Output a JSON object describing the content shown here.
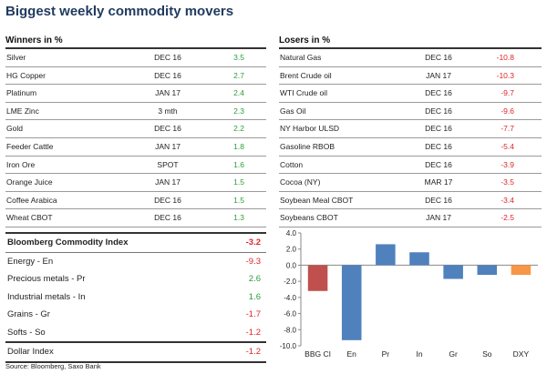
{
  "title": "Biggest weekly commodity movers",
  "winners": {
    "header": "Winners in %",
    "rows": [
      {
        "name": "Silver",
        "contract": "DEC 16",
        "change": "3.5"
      },
      {
        "name": "HG Copper",
        "contract": "DEC 16",
        "change": "2.7"
      },
      {
        "name": "Platinum",
        "contract": "JAN 17",
        "change": "2.4"
      },
      {
        "name": "LME Zinc",
        "contract": "3 mth",
        "change": "2.3"
      },
      {
        "name": "Gold",
        "contract": "DEC 16",
        "change": "2.2"
      },
      {
        "name": "Feeder Cattle",
        "contract": "JAN 17",
        "change": "1.8"
      },
      {
        "name": "Iron Ore",
        "contract": "SPOT",
        "change": "1.6"
      },
      {
        "name": "Orange Juice",
        "contract": "JAN 17",
        "change": "1.5"
      },
      {
        "name": "Coffee Arabica",
        "contract": "DEC 16",
        "change": "1.5"
      },
      {
        "name": "Wheat CBOT",
        "contract": "DEC 16",
        "change": "1.3"
      }
    ]
  },
  "losers": {
    "header": "Losers in %",
    "rows": [
      {
        "name": "Natural Gas",
        "contract": "DEC 16",
        "change": "-10.8"
      },
      {
        "name": "Brent Crude oil",
        "contract": "JAN 17",
        "change": "-10.3"
      },
      {
        "name": "WTI Crude oil",
        "contract": "DEC 16",
        "change": "-9.7"
      },
      {
        "name": "Gas Oil",
        "contract": "DEC 16",
        "change": "-9.6"
      },
      {
        "name": "NY Harbor ULSD",
        "contract": "DEC 16",
        "change": "-7.7"
      },
      {
        "name": "Gasoline RBOB",
        "contract": "DEC 16",
        "change": "-5.4"
      },
      {
        "name": "Cotton",
        "contract": "DEC 16",
        "change": "-3.9"
      },
      {
        "name": "Cocoa (NY)",
        "contract": "MAR 17",
        "change": "-3.5"
      },
      {
        "name": "Soybean Meal CBOT",
        "contract": "DEC 16",
        "change": "-3.4"
      },
      {
        "name": "Soybeans CBOT",
        "contract": "JAN 17",
        "change": "-2.5"
      }
    ]
  },
  "index": {
    "header": {
      "name": "Bloomberg Commodity Index",
      "change": "-3.2"
    },
    "rows": [
      {
        "name": "Energy - En",
        "change": "-9.3"
      },
      {
        "name": "Precious metals - Pr",
        "change": "2.6"
      },
      {
        "name": "Industrial metals - In",
        "change": "1.6"
      },
      {
        "name": "Grains - Gr",
        "change": "-1.7"
      },
      {
        "name": "Softs - So",
        "change": "-1.2"
      }
    ],
    "dollar": {
      "name": "Dollar Index",
      "change": "-1.2"
    }
  },
  "source": "Source: Bloomberg, Saxo Bank",
  "colors": {
    "positive": "#2e9d3a",
    "negative": "#e0242a"
  },
  "chart_data": {
    "type": "bar",
    "categories": [
      "BBG CI",
      "En",
      "Pr",
      "In",
      "Gr",
      "So",
      "DXY"
    ],
    "values": [
      -3.2,
      -9.3,
      2.6,
      1.6,
      -1.7,
      -1.2,
      -1.2
    ],
    "colors": [
      "#c0504d",
      "#4f81bd",
      "#4f81bd",
      "#4f81bd",
      "#4f81bd",
      "#4f81bd",
      "#f79646"
    ],
    "ylim": [
      -10.0,
      4.0
    ],
    "yticks": [
      "4.0",
      "2.0",
      "0.0",
      "-2.0",
      "-4.0",
      "-6.0",
      "-8.0",
      "-10.0"
    ],
    "title": "",
    "xlabel": "",
    "ylabel": "",
    "grid": false
  }
}
